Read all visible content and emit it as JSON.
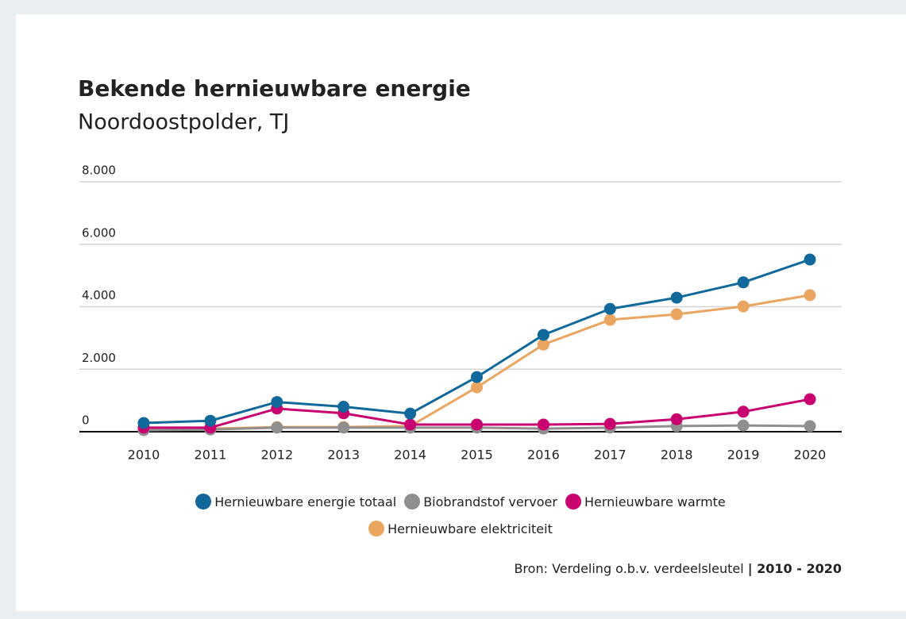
{
  "chart_data": {
    "type": "line",
    "title": "Bekende hernieuwbare energie",
    "subtitle": "Noordoostpolder, TJ",
    "categories": [
      "2010",
      "2011",
      "2012",
      "2013",
      "2014",
      "2015",
      "2016",
      "2017",
      "2018",
      "2019",
      "2020"
    ],
    "series": [
      {
        "name": "Hernieuwbare energie totaal",
        "color": "#10699a",
        "values": [
          280,
          350,
          950,
          800,
          580,
          1750,
          3100,
          3930,
          4290,
          4780,
          5510
        ]
      },
      {
        "name": "Biobrandstof vervoer",
        "color": "#8f8f8f",
        "values": [
          50,
          70,
          130,
          130,
          130,
          130,
          100,
          130,
          180,
          200,
          180
        ]
      },
      {
        "name": "Hernieuwbare warmte",
        "color": "#c9006f",
        "values": [
          130,
          130,
          740,
          590,
          230,
          230,
          230,
          250,
          400,
          640,
          1040
        ]
      },
      {
        "name": "Hernieuwbare elektriciteit",
        "color": "#eaa561",
        "values": [
          100,
          100,
          150,
          150,
          180,
          1420,
          2790,
          3580,
          3760,
          4010,
          4370
        ]
      }
    ],
    "ylim": [
      0,
      8000
    ],
    "yticks": [
      0,
      {
        "value": 2000,
        "label": "2.000"
      },
      {
        "value": 4000,
        "label": "4.000"
      },
      {
        "value": 6000,
        "label": "6.000"
      },
      {
        "value": 8000,
        "label": "8.000"
      }
    ],
    "grid": true,
    "legend": "bottom",
    "source": "Bron: Verdeling o.b.v. verdeelsleutel",
    "period": "| 2010 - 2020"
  }
}
